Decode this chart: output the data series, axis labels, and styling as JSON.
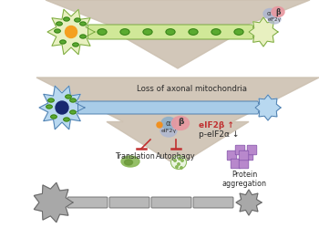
{
  "bg_color": "#ffffff",
  "neuron1_body_color": "#e8f0c0",
  "neuron1_border": "#7aaa40",
  "neuron1_nucleus_color": "#f5a020",
  "neuron1_mito_color": "#5aaa30",
  "neuron1_axon_color": "#d0e898",
  "neuron2_body_color": "#b8d8f0",
  "neuron2_border": "#5080b0",
  "neuron2_nucleus_color": "#182870",
  "neuron2_mito_color": "#5aaa30",
  "neuron2_axon_color": "#a8cce8",
  "neuron3_body_color": "#a8a8a8",
  "neuron3_border": "#686868",
  "neuron3_axon_color": "#b8b8b8",
  "arrow_color": "#c8b8a0",
  "eif_alpha_color": "#90b0c8",
  "eif_beta_color": "#e898a0",
  "eif_gamma_color": "#b0b8d0",
  "inhibit_color": "#c03030",
  "protein_agg_color": "#b888cc",
  "text_color": "#2a2a2a",
  "loss_text": "Loss of axonal mitochondria",
  "eif2b_text": "eIF2β ↑",
  "peif2a_text": "p-eIF2α ↓",
  "translation_text": "Translation",
  "autophagy_text": "Autophagy",
  "protein_text": "Protein\naggregation",
  "alpha_label": "α",
  "beta_label": "β",
  "gamma_label": "eIF2γ"
}
